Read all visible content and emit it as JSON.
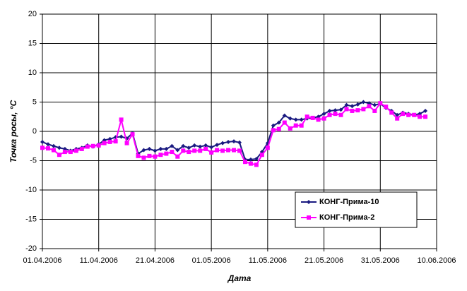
{
  "chart_data": {
    "type": "line",
    "x": [
      "2006-04-01",
      "2006-04-02",
      "2006-04-03",
      "2006-04-04",
      "2006-04-05",
      "2006-04-06",
      "2006-04-07",
      "2006-04-08",
      "2006-04-09",
      "2006-04-10",
      "2006-04-11",
      "2006-04-12",
      "2006-04-13",
      "2006-04-14",
      "2006-04-15",
      "2006-04-16",
      "2006-04-17",
      "2006-04-18",
      "2006-04-19",
      "2006-04-20",
      "2006-04-21",
      "2006-04-22",
      "2006-04-23",
      "2006-04-24",
      "2006-04-25",
      "2006-04-26",
      "2006-04-27",
      "2006-04-28",
      "2006-04-29",
      "2006-04-30",
      "2006-05-01",
      "2006-05-02",
      "2006-05-03",
      "2006-05-04",
      "2006-05-05",
      "2006-05-06",
      "2006-05-07",
      "2006-05-08",
      "2006-05-09",
      "2006-05-10",
      "2006-05-11",
      "2006-05-12",
      "2006-05-13",
      "2006-05-14",
      "2006-05-15",
      "2006-05-16",
      "2006-05-17",
      "2006-05-18",
      "2006-05-19",
      "2006-05-20",
      "2006-05-21",
      "2006-05-22",
      "2006-05-23",
      "2006-05-24",
      "2006-05-25",
      "2006-05-26",
      "2006-05-27",
      "2006-05-28",
      "2006-05-29",
      "2006-05-30",
      "2006-05-31",
      "2006-06-01",
      "2006-06-02",
      "2006-06-03",
      "2006-06-04",
      "2006-06-05",
      "2006-06-06",
      "2006-06-07",
      "2006-06-08"
    ],
    "series": [
      {
        "name": "КОНГ-Прима-10",
        "color": "#1a1a80",
        "marker": "diamond",
        "values": [
          -1.8,
          -2.2,
          -2.5,
          -2.8,
          -3.0,
          -3.3,
          -3.0,
          -2.8,
          -2.4,
          -2.6,
          -2.2,
          -1.5,
          -1.3,
          -1.0,
          -0.9,
          -1.2,
          -0.3,
          -3.8,
          -3.2,
          -3.0,
          -3.3,
          -3.0,
          -3.0,
          -2.5,
          -3.2,
          -2.5,
          -2.8,
          -2.4,
          -2.6,
          -2.4,
          -2.7,
          -2.3,
          -2.0,
          -1.8,
          -1.7,
          -1.9,
          -4.8,
          -4.8,
          -4.7,
          -3.5,
          -2.0,
          1.0,
          1.5,
          2.7,
          2.2,
          2.0,
          2.0,
          2.2,
          2.3,
          2.5,
          3.0,
          3.5,
          3.6,
          3.7,
          4.5,
          4.3,
          4.6,
          5.0,
          4.8,
          4.5,
          4.7,
          4.0,
          3.5,
          2.8,
          3.2,
          3.0,
          2.8,
          3.0,
          3.5
        ]
      },
      {
        "name": "КОНГ-Прима-2",
        "color": "#ff00ff",
        "marker": "square",
        "values": [
          -2.8,
          -2.9,
          -3.2,
          -4.0,
          -3.5,
          -3.5,
          -3.3,
          -3.0,
          -2.6,
          -2.5,
          -2.4,
          -2.0,
          -1.8,
          -1.7,
          2.0,
          -2.0,
          -0.5,
          -4.2,
          -4.5,
          -4.2,
          -4.3,
          -4.0,
          -3.8,
          -3.5,
          -4.3,
          -3.3,
          -3.5,
          -3.3,
          -3.3,
          -3.0,
          -3.6,
          -3.2,
          -3.3,
          -3.2,
          -3.2,
          -3.3,
          -5.2,
          -5.5,
          -5.7,
          -4.0,
          -2.8,
          0.2,
          0.4,
          1.5,
          0.5,
          1.0,
          1.0,
          2.5,
          2.3,
          2.0,
          2.2,
          2.8,
          3.0,
          2.8,
          3.8,
          3.5,
          3.6,
          3.8,
          4.3,
          3.5,
          4.8,
          4.2,
          3.2,
          2.2,
          3.0,
          2.8,
          2.8,
          2.5,
          2.5
        ]
      }
    ],
    "xlim": [
      "2006-04-01",
      "2006-06-10"
    ],
    "xticks": [
      {
        "value": "2006-04-01",
        "label": "01.04.2006"
      },
      {
        "value": "2006-04-11",
        "label": "11.04.2006"
      },
      {
        "value": "2006-04-21",
        "label": "21.04.2006"
      },
      {
        "value": "2006-05-01",
        "label": "01.05.2006"
      },
      {
        "value": "2006-05-11",
        "label": "11.05.2006"
      },
      {
        "value": "2006-05-21",
        "label": "21.05.2006"
      },
      {
        "value": "2006-05-31",
        "label": "31.05.2006"
      },
      {
        "value": "2006-06-10",
        "label": "10.06.2006"
      }
    ],
    "ylim": [
      -20,
      20
    ],
    "yticks": [
      -20,
      -15,
      -10,
      -5,
      0,
      5,
      10,
      15,
      20
    ],
    "xlabel": "Дата",
    "ylabel": "Точка росы, °С",
    "grid": true,
    "legend": "lower right"
  }
}
